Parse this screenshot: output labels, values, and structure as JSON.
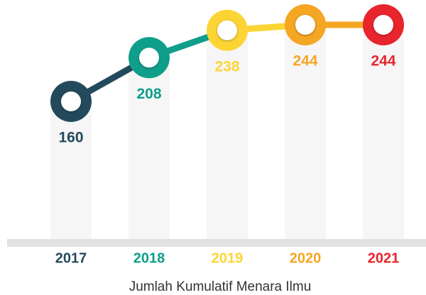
{
  "chart_data": {
    "type": "line",
    "title": "Jumlah Kumulatif Menara Ilmu",
    "categories": [
      "2017",
      "2018",
      "2019",
      "2020",
      "2021"
    ],
    "values": [
      160,
      208,
      238,
      244,
      244
    ],
    "colors": [
      "#234a5c",
      "#0f9e8a",
      "#fcd535",
      "#f5a623",
      "#e8242c"
    ]
  }
}
